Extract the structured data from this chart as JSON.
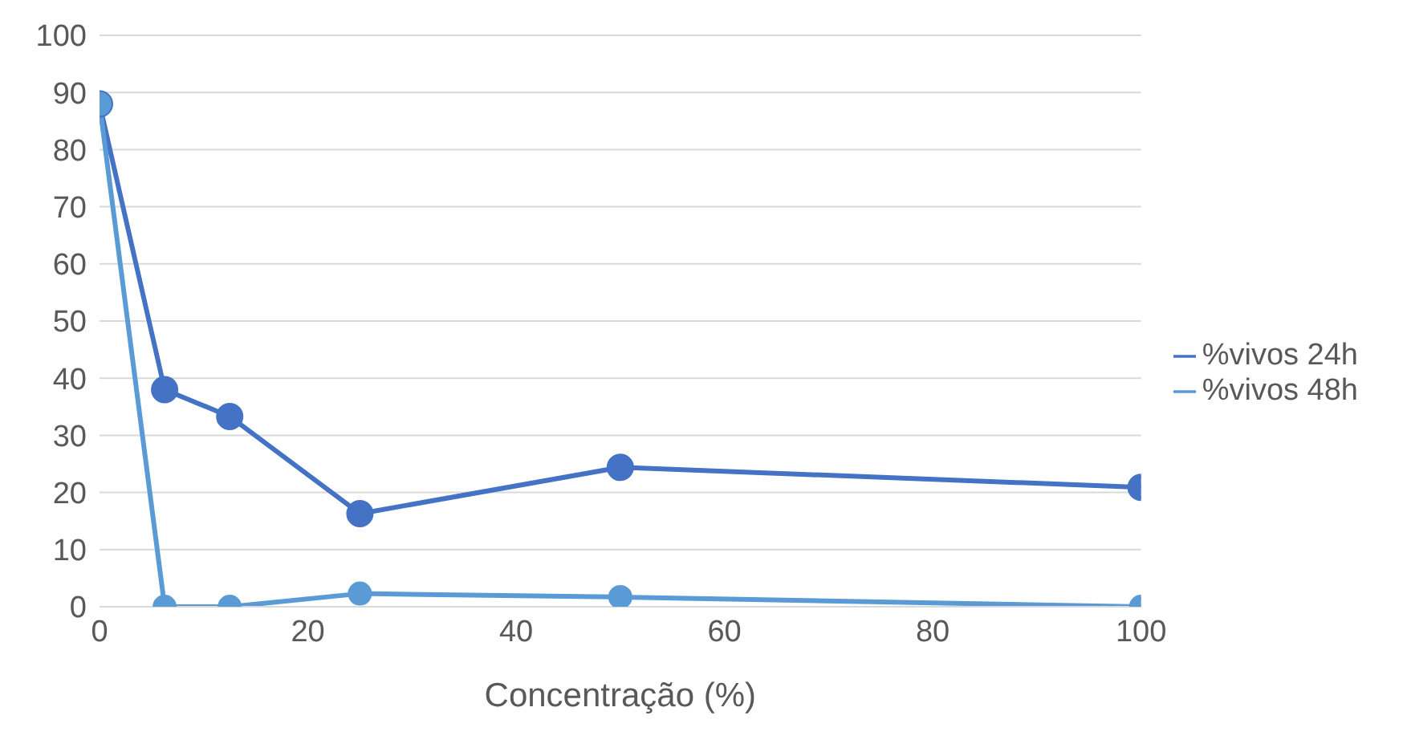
{
  "chart_data": {
    "type": "line",
    "xlabel": "Concentração (%)",
    "x": [
      0,
      6.25,
      12.5,
      25,
      50,
      100
    ],
    "series": [
      {
        "name": "%vivos 24h",
        "color": "#4472c4",
        "values": [
          88,
          38,
          33.3,
          16.3,
          24.4,
          20.9
        ]
      },
      {
        "name": "%vivos 48h",
        "color": "#5b9bd5",
        "values": [
          88,
          0,
          0,
          2.3,
          1.7,
          0
        ]
      }
    ],
    "xlim": [
      0,
      100
    ],
    "xticks": [
      0,
      20,
      40,
      60,
      80,
      100
    ],
    "ylim": [
      0,
      100
    ],
    "yticks": [
      0,
      10,
      20,
      30,
      40,
      50,
      60,
      70,
      80,
      90,
      100
    ],
    "grid": "y",
    "legend": "right",
    "marker": "circle",
    "line_style": "solid"
  }
}
